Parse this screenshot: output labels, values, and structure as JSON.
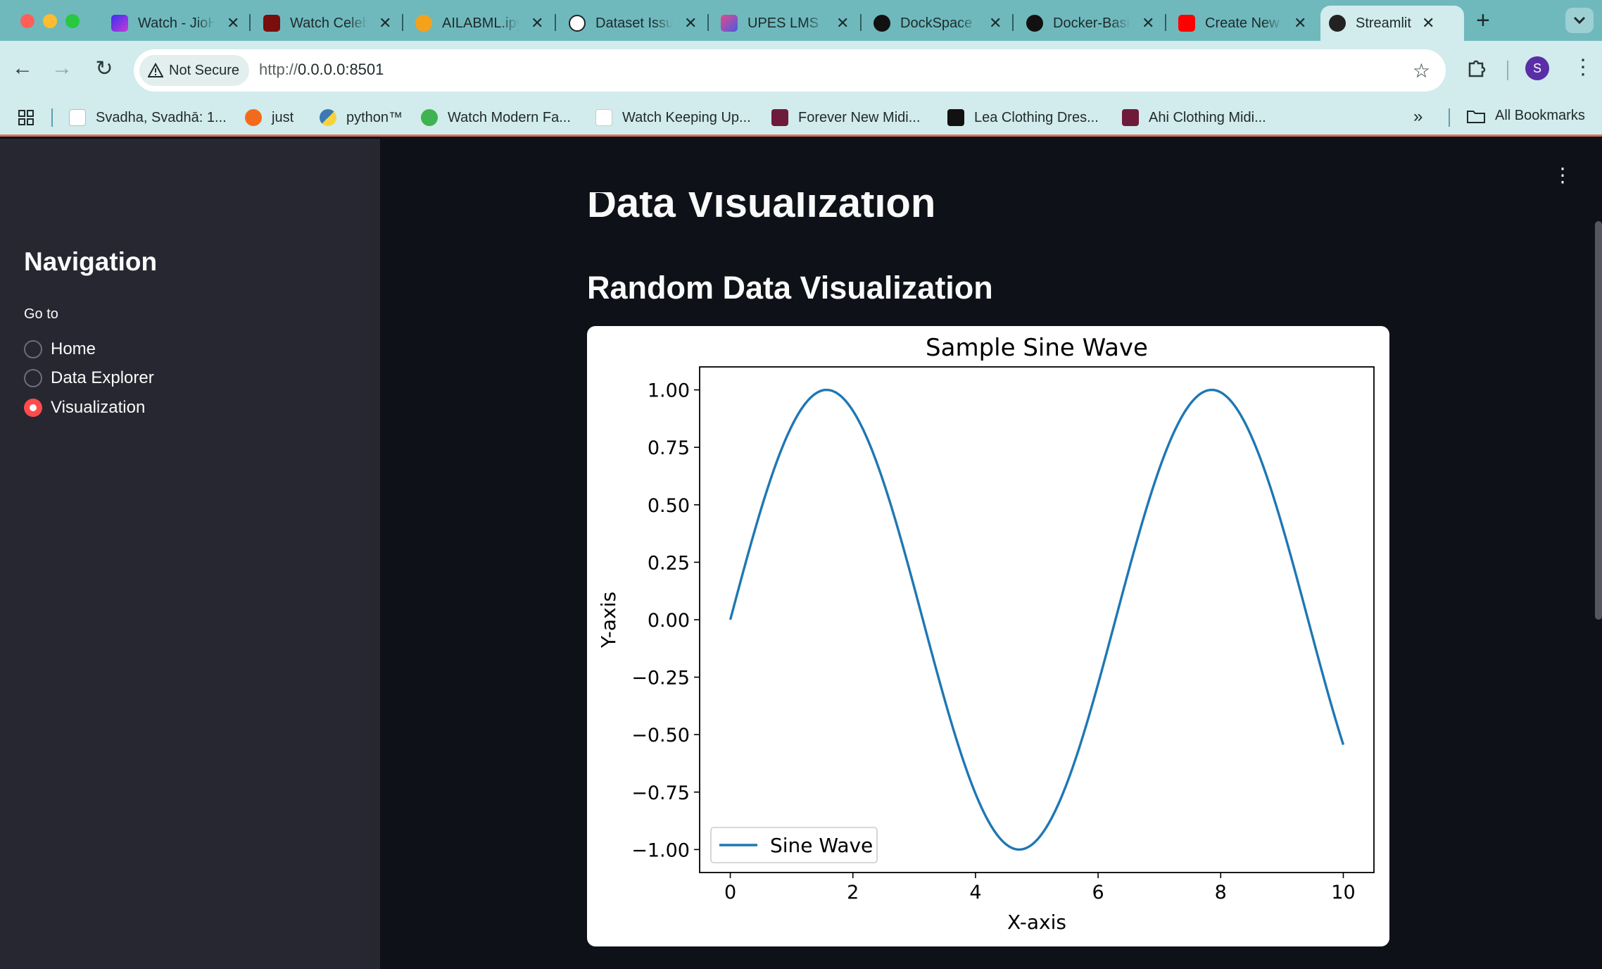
{
  "browser": {
    "tabs": [
      {
        "title": "Watch - JioHotstar",
        "favicon_color": "#6b3df0"
      },
      {
        "title": "Watch Celebrity",
        "favicon_color": "#7a0d0d"
      },
      {
        "title": "AILABML.ipynb",
        "favicon_color": "#f4a21c"
      },
      {
        "title": "Dataset Issue",
        "favicon_color": "#ffffff"
      },
      {
        "title": "UPES LMS",
        "favicon_color": "#c23a8e"
      },
      {
        "title": "DockSpace",
        "favicon_color": "#111111"
      },
      {
        "title": "Docker-Basics",
        "favicon_color": "#111111"
      },
      {
        "title": "Create New",
        "favicon_color": "#ff0000"
      },
      {
        "title": "Streamlit",
        "favicon_color": "#222222",
        "active": true
      }
    ],
    "security_label": "Not Secure",
    "url_prefix": "http://",
    "url_host": "0.0.0.0:8501",
    "profile_initial": "S",
    "bookmarks": [
      {
        "label": "Svadha, Svadhā: 1...",
        "icon_color": "#ffffff"
      },
      {
        "label": "just",
        "icon_color": "#f26b1d"
      },
      {
        "label": "python™",
        "icon_color": "#3c79b2"
      },
      {
        "label": "Watch Modern Fa...",
        "icon_color": "#3fb34f"
      },
      {
        "label": "Watch Keeping Up...",
        "icon_color": "#ffffff"
      },
      {
        "label": "Forever New Midi...",
        "icon_color": "#6d1a3b"
      },
      {
        "label": "Lea Clothing Dres...",
        "icon_color": "#111111"
      },
      {
        "label": "Ahi Clothing Midi...",
        "icon_color": "#6d1a3b"
      }
    ],
    "all_bookmarks_label": "All Bookmarks",
    "accent_color": "#6fb9bd"
  },
  "sidebar": {
    "title": "Navigation",
    "radio_label": "Go to",
    "options": [
      {
        "label": "Home",
        "selected": false
      },
      {
        "label": "Data Explorer",
        "selected": false
      },
      {
        "label": "Visualization",
        "selected": true
      }
    ],
    "accent_color": "#ff4b4b"
  },
  "main": {
    "title": "Data Visualization",
    "subtitle": "Random Data Visualization"
  },
  "chart_data": {
    "type": "line",
    "title": "Sample Sine Wave",
    "xlabel": "X-axis",
    "ylabel": "Y-axis",
    "xlim": [
      -0.5,
      10.5
    ],
    "ylim": [
      -1.1,
      1.1
    ],
    "xticks": [
      "0",
      "2",
      "4",
      "6",
      "8",
      "10"
    ],
    "yticks": [
      "1.00",
      "0.75",
      "0.50",
      "0.25",
      "0.00",
      "−0.25",
      "−0.50",
      "−0.75",
      "−1.00"
    ],
    "series": [
      {
        "name": "Sine Wave",
        "function": "sin(x)",
        "x_range": [
          0,
          10
        ],
        "color": "#1f77b4"
      }
    ],
    "legend": "lower left",
    "grid": false
  }
}
